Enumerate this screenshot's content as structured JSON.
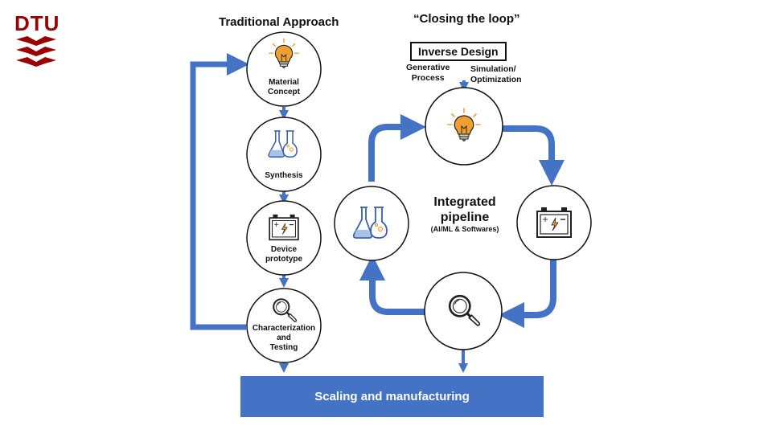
{
  "logo": {
    "text": "DTU",
    "color": "#990000"
  },
  "traditional": {
    "title": "Traditional Approach",
    "steps": [
      {
        "label_lines": [
          "Material",
          "Concept"
        ],
        "icon": "lightbulb-icon"
      },
      {
        "label_lines": [
          "Synthesis"
        ],
        "icon": "flasks-icon"
      },
      {
        "label_lines": [
          "Device",
          "prototype"
        ],
        "icon": "battery-icon"
      },
      {
        "label_lines": [
          "Characterization",
          "and",
          "Testing"
        ],
        "icon": "magnifier-icon"
      }
    ]
  },
  "closed_loop": {
    "title": "“Closing the loop”",
    "inverse_design": "Inverse Design",
    "generative_lines": [
      "Generative",
      "Process"
    ],
    "simulation_lines": [
      "Simulation/",
      "Optimization"
    ],
    "center_title_lines": [
      "Integrated",
      "pipeline"
    ],
    "center_subtitle": "(AI/ML & Softwares)",
    "nodes": [
      "lightbulb-icon",
      "battery-icon",
      "magnifier-icon",
      "flasks-icon"
    ]
  },
  "scaling_label": "Scaling and manufacturing",
  "colors": {
    "arrow_blue": "#4472c4",
    "bulb_orange": "#f0a030",
    "icon_blue": "#3a5fa8",
    "outline": "#111111"
  }
}
